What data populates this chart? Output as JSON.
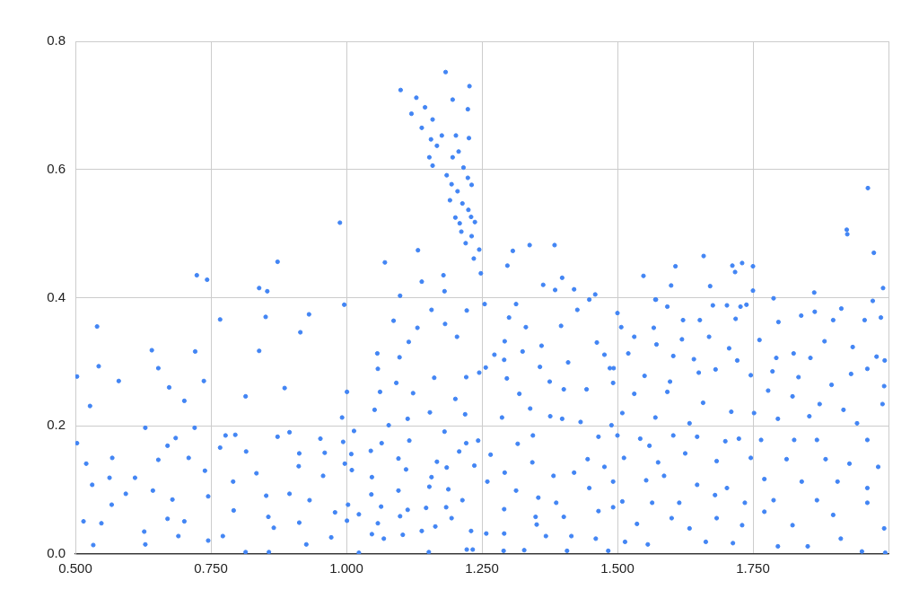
{
  "chart_data": {
    "type": "scatter",
    "x": [
      1.132,
      1.071,
      1.179,
      1.139,
      1.181,
      1.099,
      1.307,
      1.338,
      1.384,
      1.297,
      1.398,
      1.363,
      1.385,
      1.42,
      1.459,
      0.724,
      0.743,
      0.873,
      0.839,
      0.854,
      0.988,
      1.962,
      1.923,
      1.924,
      1.973,
      1.659,
      1.607,
      1.548,
      1.712,
      1.73,
      1.75,
      1.717,
      1.599,
      1.671,
      1.75,
      1.863,
      1.99,
      1.571,
      1.788,
      1.183,
      1.1,
      1.227,
      1.129,
      1.196,
      1.145,
      1.12,
      1.224,
      1.159,
      1.139,
      1.176,
      1.202,
      1.226,
      1.156,
      1.167,
      1.207,
      1.153,
      1.196,
      1.159,
      1.216,
      1.185,
      1.224,
      1.194,
      1.231,
      1.205,
      1.191,
      1.214,
      1.225,
      1.201,
      1.23,
      1.209,
      1.237,
      1.212,
      1.231,
      1.22,
      1.245,
      1.235,
      1.248,
      0.54,
      0.543,
      0.503,
      0.641,
      0.653,
      0.721,
      0.767,
      0.851,
      0.931,
      0.996,
      0.527,
      0.58,
      0.701,
      0.839,
      0.915,
      0.886,
      0.503,
      0.531,
      0.515,
      0.533,
      0.568,
      0.629,
      0.593,
      0.627,
      0.67,
      0.679,
      0.709,
      0.739,
      0.745,
      0.777,
      0.792,
      0.834,
      0.856,
      0.873,
      0.913,
      0.895,
      0.926,
      0.96,
      0.979,
      0.992,
      0.52,
      0.548,
      0.563,
      0.61,
      0.567,
      0.629,
      0.653,
      0.685,
      0.643,
      0.67,
      0.701,
      0.69,
      0.72,
      0.745,
      0.767,
      0.795,
      0.791,
      0.772,
      0.814,
      0.815,
      0.852,
      0.866,
      0.857,
      0.895,
      0.912,
      0.913,
      0.952,
      0.957,
      0.932,
      0.972,
      0.994,
      0.997,
      1.001,
      0.673,
      0.737,
      0.814,
      1.087,
      1.115,
      1.131,
      1.157,
      1.182,
      1.204,
      1.222,
      1.057,
      1.058,
      1.098,
      1.162,
      1.221,
      1.245,
      1.062,
      1.092,
      1.123,
      1.201,
      1.001,
      1.052,
      1.078,
      1.113,
      1.154,
      1.219,
      1.014,
      1.065,
      1.116,
      1.181,
      1.221,
      1.243,
      1.009,
      1.045,
      1.096,
      1.167,
      1.208,
      1.236,
      1.01,
      1.047,
      1.11,
      1.157,
      1.185,
      1.046,
      1.096,
      1.153,
      1.188,
      1.214,
      1.003,
      1.064,
      1.113,
      1.147,
      1.184,
      1.023,
      1.099,
      1.194,
      1.058,
      1.139,
      1.164,
      1.23,
      1.047,
      1.069,
      1.104,
      1.023,
      1.152,
      1.222,
      1.233,
      1.255,
      1.313,
      1.3,
      1.331,
      1.292,
      1.273,
      1.325,
      1.396,
      1.426,
      1.448,
      1.36,
      1.357,
      1.409,
      1.462,
      1.476,
      1.486,
      1.257,
      1.291,
      1.296,
      1.319,
      1.339,
      1.375,
      1.401,
      1.443,
      1.492,
      1.287,
      1.316,
      1.344,
      1.376,
      1.398,
      1.432,
      1.465,
      1.489,
      1.266,
      1.292,
      1.343,
      1.382,
      1.42,
      1.445,
      1.476,
      1.26,
      1.313,
      1.354,
      1.387,
      1.448,
      1.492,
      1.291,
      1.349,
      1.401,
      1.465,
      1.258,
      1.291,
      1.368,
      1.415,
      1.46,
      1.29,
      1.328,
      1.407,
      1.483,
      1.351,
      1.5,
      1.57,
      1.592,
      1.676,
      1.702,
      1.727,
      1.738,
      1.864,
      1.913,
      1.971,
      1.986,
      1.507,
      1.567,
      1.621,
      1.652,
      1.718,
      1.762,
      1.797,
      1.839,
      1.898,
      1.956,
      1.531,
      1.572,
      1.619,
      1.669,
      1.706,
      1.825,
      1.882,
      1.934,
      1.978,
      1.52,
      1.603,
      1.641,
      1.721,
      1.793,
      1.856,
      1.993,
      1.493,
      1.55,
      1.597,
      1.65,
      1.681,
      1.746,
      1.786,
      1.834,
      1.895,
      1.931,
      1.961,
      1.992,
      1.531,
      1.592,
      1.658,
      1.71,
      1.778,
      1.823,
      1.873,
      1.917,
      1.989,
      1.509,
      1.57,
      1.633,
      1.752,
      1.796,
      1.854,
      1.942,
      1.5,
      1.542,
      1.603,
      1.647,
      1.699,
      1.724,
      1.765,
      1.826,
      1.868,
      1.961,
      1.512,
      1.559,
      1.575,
      1.625,
      1.683,
      1.746,
      1.812,
      1.884,
      1.928,
      1.981,
      1.492,
      1.553,
      1.586,
      1.647,
      1.702,
      1.771,
      1.84,
      1.906,
      1.961,
      1.509,
      1.564,
      1.614,
      1.68,
      1.735,
      1.788,
      1.868,
      1.961,
      1.536,
      1.6,
      1.683,
      1.73,
      1.771,
      1.823,
      1.898,
      1.992,
      1.514,
      1.556,
      1.633,
      1.663,
      1.713,
      1.796,
      1.851,
      1.912,
      1.951,
      1.994
    ],
    "values": [
      0.474,
      0.455,
      0.435,
      0.425,
      0.41,
      0.403,
      0.473,
      0.482,
      0.482,
      0.45,
      0.431,
      0.42,
      0.412,
      0.413,
      0.405,
      0.435,
      0.428,
      0.456,
      0.415,
      0.41,
      0.517,
      0.571,
      0.506,
      0.499,
      0.47,
      0.465,
      0.449,
      0.434,
      0.45,
      0.454,
      0.449,
      0.44,
      0.419,
      0.418,
      0.411,
      0.408,
      0.415,
      0.397,
      0.399,
      0.752,
      0.724,
      0.73,
      0.712,
      0.709,
      0.697,
      0.687,
      0.694,
      0.678,
      0.665,
      0.653,
      0.653,
      0.649,
      0.647,
      0.637,
      0.628,
      0.619,
      0.619,
      0.606,
      0.603,
      0.591,
      0.587,
      0.577,
      0.576,
      0.566,
      0.552,
      0.547,
      0.537,
      0.525,
      0.526,
      0.516,
      0.518,
      0.503,
      0.496,
      0.485,
      0.475,
      0.461,
      0.438,
      0.355,
      0.293,
      0.277,
      0.318,
      0.29,
      0.316,
      0.366,
      0.37,
      0.374,
      0.389,
      0.231,
      0.27,
      0.239,
      0.317,
      0.346,
      0.259,
      0.173,
      0.108,
      0.051,
      0.014,
      0.15,
      0.197,
      0.094,
      0.035,
      0.169,
      0.085,
      0.15,
      0.13,
      0.021,
      0.185,
      0.068,
      0.126,
      0.058,
      0.183,
      0.157,
      0.094,
      0.015,
      0.158,
      0.065,
      0.213,
      0.141,
      0.048,
      0.119,
      0.119,
      0.077,
      0.015,
      0.147,
      0.181,
      0.099,
      0.055,
      0.051,
      0.028,
      0.197,
      0.09,
      0.166,
      0.186,
      0.113,
      0.028,
      0.003,
      0.16,
      0.091,
      0.041,
      0.003,
      0.19,
      0.137,
      0.049,
      0.18,
      0.122,
      0.084,
      0.026,
      0.175,
      0.141,
      0.052,
      0.26,
      0.27,
      0.246,
      0.364,
      0.331,
      0.353,
      0.381,
      0.359,
      0.339,
      0.38,
      0.313,
      0.289,
      0.307,
      0.275,
      0.276,
      0.283,
      0.253,
      0.267,
      0.251,
      0.242,
      0.253,
      0.225,
      0.201,
      0.211,
      0.221,
      0.218,
      0.192,
      0.173,
      0.177,
      0.191,
      0.173,
      0.177,
      0.156,
      0.161,
      0.149,
      0.144,
      0.16,
      0.138,
      0.131,
      0.12,
      0.132,
      0.12,
      0.135,
      0.093,
      0.099,
      0.105,
      0.101,
      0.084,
      0.077,
      0.074,
      0.069,
      0.072,
      0.073,
      0.062,
      0.059,
      0.056,
      0.048,
      0.036,
      0.043,
      0.036,
      0.031,
      0.024,
      0.03,
      0.002,
      0.003,
      0.007,
      0.007,
      0.39,
      0.39,
      0.369,
      0.354,
      0.332,
      0.311,
      0.316,
      0.356,
      0.381,
      0.397,
      0.325,
      0.292,
      0.299,
      0.33,
      0.311,
      0.29,
      0.291,
      0.303,
      0.274,
      0.25,
      0.227,
      0.269,
      0.257,
      0.257,
      0.267,
      0.213,
      0.172,
      0.185,
      0.215,
      0.211,
      0.206,
      0.183,
      0.201,
      0.155,
      0.127,
      0.143,
      0.122,
      0.127,
      0.148,
      0.136,
      0.113,
      0.099,
      0.088,
      0.08,
      0.103,
      0.073,
      0.07,
      0.058,
      0.058,
      0.067,
      0.032,
      0.032,
      0.028,
      0.028,
      0.024,
      0.005,
      0.006,
      0.005,
      0.005,
      0.046,
      0.376,
      0.397,
      0.386,
      0.388,
      0.388,
      0.386,
      0.389,
      0.378,
      0.383,
      0.395,
      0.369,
      0.354,
      0.353,
      0.365,
      0.365,
      0.367,
      0.334,
      0.362,
      0.372,
      0.365,
      0.365,
      0.339,
      0.327,
      0.335,
      0.339,
      0.321,
      0.313,
      0.332,
      0.323,
      0.308,
      0.313,
      0.309,
      0.304,
      0.302,
      0.306,
      0.306,
      0.302,
      0.29,
      0.278,
      0.269,
      0.283,
      0.288,
      0.279,
      0.285,
      0.276,
      0.264,
      0.281,
      0.289,
      0.262,
      0.25,
      0.253,
      0.236,
      0.222,
      0.255,
      0.246,
      0.234,
      0.225,
      0.234,
      0.22,
      0.213,
      0.204,
      0.22,
      0.211,
      0.215,
      0.204,
      0.185,
      0.18,
      0.185,
      0.183,
      0.176,
      0.18,
      0.178,
      0.178,
      0.178,
      0.178,
      0.15,
      0.169,
      0.143,
      0.157,
      0.145,
      0.15,
      0.148,
      0.148,
      0.141,
      0.136,
      0.113,
      0.115,
      0.122,
      0.108,
      0.103,
      0.117,
      0.113,
      0.113,
      0.103,
      0.082,
      0.08,
      0.08,
      0.092,
      0.08,
      0.084,
      0.084,
      0.08,
      0.047,
      0.056,
      0.056,
      0.045,
      0.066,
      0.045,
      0.061,
      0.04,
      0.019,
      0.015,
      0.04,
      0.019,
      0.017,
      0.012,
      0.012,
      0.024,
      0.004,
      0.002
    ],
    "color": "#4285f4",
    "marker": "circle",
    "xlim": [
      0.5,
      2.0
    ],
    "xticks": [
      {
        "value": 0.5,
        "label": "0.500"
      },
      {
        "value": 0.75,
        "label": "0.750"
      },
      {
        "value": 1.0,
        "label": "1.000"
      },
      {
        "value": 1.25,
        "label": "1.250"
      },
      {
        "value": 1.5,
        "label": "1.500"
      },
      {
        "value": 1.75,
        "label": "1.750"
      },
      {
        "value": 2.0,
        "label": null
      }
    ],
    "ylim": [
      0,
      0.8
    ],
    "yticks": [
      {
        "value": 0,
        "label": "0.0"
      },
      0.2,
      0.4,
      0.6,
      0.8
    ],
    "grid": true
  }
}
